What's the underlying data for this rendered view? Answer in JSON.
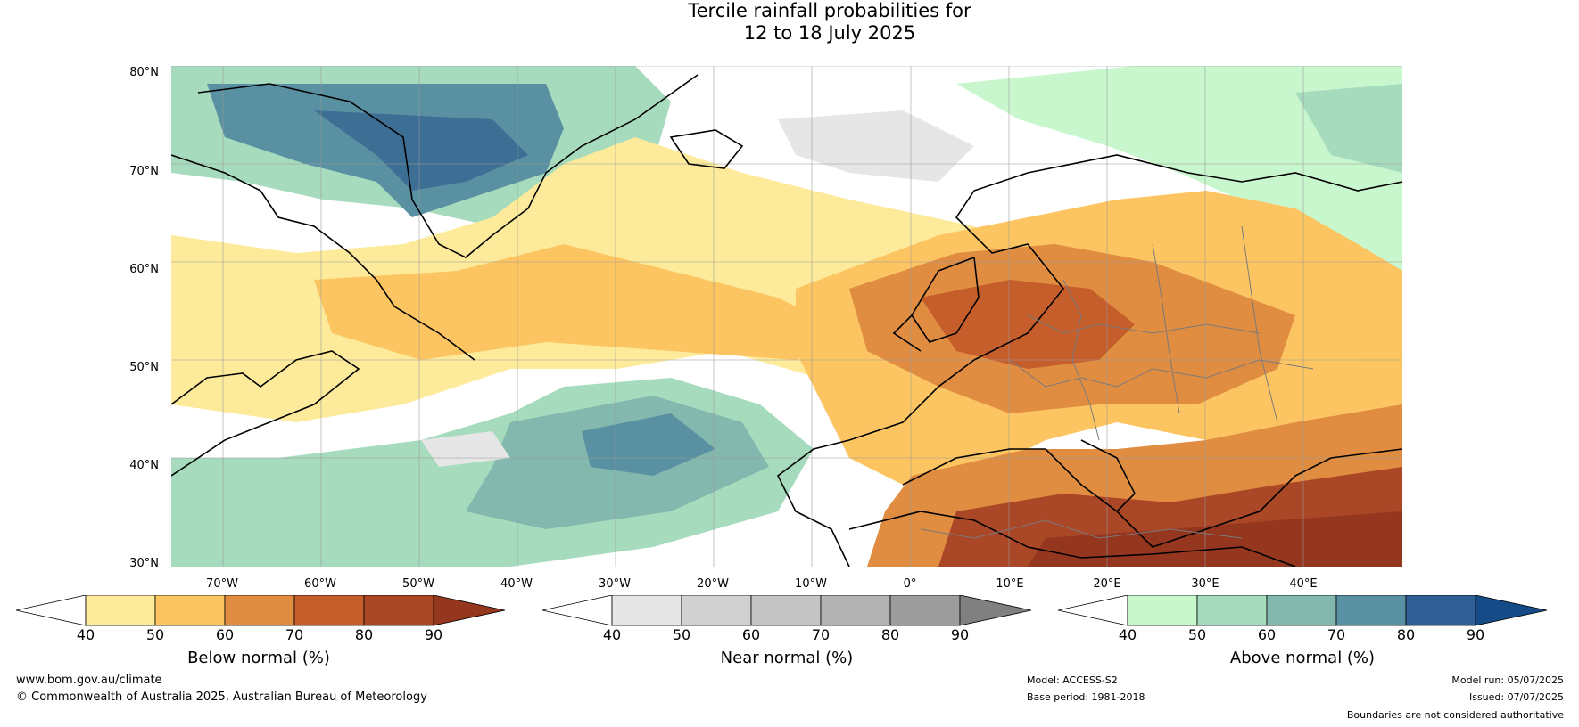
{
  "title": {
    "line1": "Tercile rainfall probabilities for",
    "line2": "12 to 18 July 2025"
  },
  "map": {
    "lat_labels": [
      "80°N",
      "70°N",
      "60°N",
      "50°N",
      "40°N",
      "30°N"
    ],
    "lon_labels": [
      "70°W",
      "60°W",
      "50°W",
      "40°W",
      "30°W",
      "20°W",
      "10°W",
      "0°",
      "10°E",
      "20°E",
      "30°E",
      "40°E"
    ],
    "colors": {
      "below": [
        "#fdeb9b",
        "#fcc561",
        "#e08d42",
        "#c65e2b",
        "#aa4726",
        "#95361f"
      ],
      "near": [
        "#e6e6e6",
        "#d1d1d1",
        "#c4c4c4",
        "#b3b3b3",
        "#9d9d9d",
        "#808080"
      ],
      "above": [
        "#c9f7cd",
        "#a6dbbe",
        "#83b8ae",
        "#5991a3",
        "#305f96",
        "#154c88"
      ]
    }
  },
  "colorbars": {
    "below": {
      "label": "Below normal (%)",
      "ticks": [
        "40",
        "50",
        "60",
        "70",
        "80",
        "90"
      ]
    },
    "near": {
      "label": "Near normal (%)",
      "ticks": [
        "40",
        "50",
        "60",
        "70",
        "80",
        "90"
      ]
    },
    "above": {
      "label": "Above normal (%)",
      "ticks": [
        "40",
        "50",
        "60",
        "70",
        "80",
        "90"
      ]
    }
  },
  "footer": {
    "website": "www.bom.gov.au/climate",
    "copyright": "© Commonwealth of Australia 2025, Australian Bureau of Meteorology",
    "model": "Model: ACCESS-S2",
    "base_period": "Base period: 1981-2018",
    "model_run": "Model run: 05/07/2025",
    "issued": "Issued: 07/07/2025",
    "disclaimer": "Boundaries are not considered authoritative"
  }
}
